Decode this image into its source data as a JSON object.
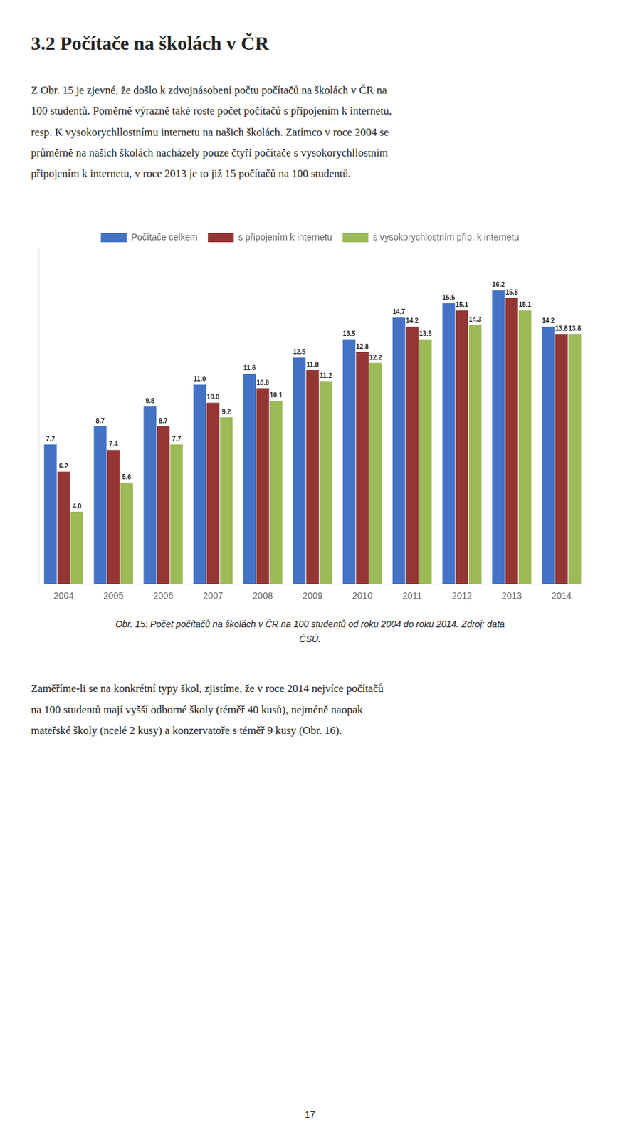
{
  "chart_data": {
    "type": "bar",
    "title": "3.2  Počítače na školách v ČR",
    "body": [
      "Z Obr. 15 je zjevné, že došlo k zdvojnásobení počtu počítačů na školách v ČR na",
      "100 studentů. Poměrně výrazně také roste počet počítačů s připojením k internetu,",
      "resp. K vysokorychllostnímu internetu na našich školách. Zatímco v roce 2004 se",
      "průměrně na našich školách nacházely pouze čtyři počítače s vysokorychllostním",
      "připojením k internetu, v roce 2013 je to již 15 počítačů na 100 studentů."
    ],
    "caption": [
      "Obr. 15: Počet počítačů na školách v ČR na 100 studentů od roku 2004 do roku 2014. Zdroj: data",
      "ČSÚ."
    ],
    "bottom_text": [
      "Zaměříme-li se na konkrétní typy škol, zjistíme, že v roce 2014 nejvíce počítačů",
      "na 100 studentů mají vyšší odborné školy (téměř 40 kusů), nejméně naopak",
      "mateřské školy (ncelé 2 kusy) a konzervatoře s téměř 9 kusy (Obr. 16)."
    ],
    "page_number": "17",
    "categories": [
      "2004",
      "2005",
      "2006",
      "2007",
      "2008",
      "2009",
      "2010",
      "2011",
      "2012",
      "2013",
      "2014"
    ],
    "series": [
      {
        "name": "Počítače celkem",
        "color": "#4472C4",
        "values": [
          7.7,
          8.7,
          9.8,
          11.0,
          11.6,
          12.5,
          13.5,
          14.7,
          15.5,
          16.2,
          14.2
        ],
        "value_labels": [
          "7.7",
          "8.7",
          "9.8",
          "11.0",
          "11.6",
          "12.5",
          "13.5",
          "14.7",
          "15.5",
          "16.2",
          "14.2"
        ]
      },
      {
        "name": "s připojením k internetu",
        "color": "#943634",
        "values": [
          6.2,
          7.4,
          8.7,
          10.0,
          10.8,
          11.8,
          12.8,
          14.2,
          15.1,
          15.8,
          13.8
        ],
        "value_labels": [
          "6.2",
          "7.4",
          "8.7",
          "10.0",
          "10.8",
          "11.8",
          "12.8",
          "14.2",
          "15.1",
          "15.8",
          "13.8"
        ]
      },
      {
        "name": "s vysokorychlostním přip. k internetu",
        "color": "#9BBB59",
        "values": [
          4.0,
          5.6,
          7.7,
          9.2,
          10.1,
          11.2,
          12.2,
          13.5,
          14.3,
          15.1,
          13.8
        ],
        "value_labels": [
          "4.0",
          "5.6",
          "7.7",
          "9.2",
          "10.1",
          "11.2",
          "12.2",
          "13.5",
          "14.3",
          "15.1",
          "13.8"
        ]
      }
    ],
    "ylim": [
      0,
      18.5
    ],
    "tick_labels": "x",
    "data_labels": true,
    "grid": false,
    "legend": "top"
  }
}
